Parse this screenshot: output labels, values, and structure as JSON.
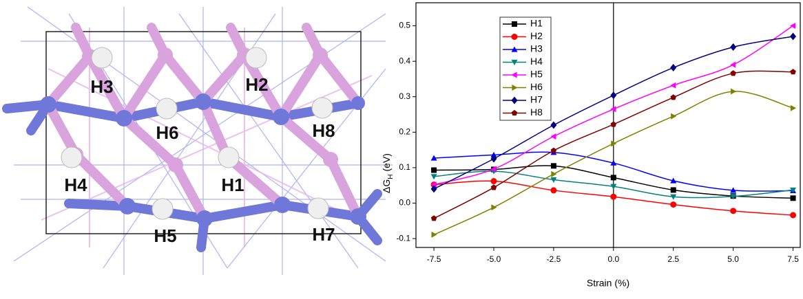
{
  "structure": {
    "labels": [
      "H3",
      "H2",
      "H6",
      "H8",
      "H4",
      "H1",
      "H5",
      "H7"
    ]
  },
  "chart_data": {
    "type": "line",
    "x": [
      -7.5,
      -5,
      -2.5,
      0,
      2.5,
      5,
      7.5
    ],
    "xlim": [
      -8.25,
      7.8
    ],
    "xticks": [
      -7.5,
      {
        "value": -5,
        "label": "-5.0"
      },
      -2.5,
      {
        "value": 0,
        "label": "0.0"
      },
      2.5,
      {
        "value": 5,
        "label": "5.0"
      },
      7.5
    ],
    "ylim": [
      -0.125,
      0.565
    ],
    "yticks": [
      -0.1,
      {
        "value": 0,
        "label": "0.0"
      },
      0.1,
      0.2,
      0.3,
      0.4,
      0.5
    ],
    "xlabel": "Strain (%)",
    "ylabel_parts": [
      "ΔG",
      "H",
      "(eV)"
    ],
    "reference_line_x": 0,
    "legend": "top-left",
    "series": [
      {
        "name": "H1",
        "color": "#000000",
        "marker": "square",
        "values": [
          0.093,
          0.095,
          0.105,
          0.072,
          0.037,
          0.02,
          0.014
        ]
      },
      {
        "name": "H2",
        "color": "#ff0000",
        "marker": "circle",
        "values": [
          0.052,
          0.062,
          0.036,
          0.018,
          -0.004,
          -0.022,
          -0.034
        ]
      },
      {
        "name": "H3",
        "color": "#0000ff",
        "marker": "triangle-up",
        "values": [
          0.127,
          0.136,
          0.143,
          0.113,
          0.063,
          0.036,
          0.035
        ]
      },
      {
        "name": "H4",
        "color": "#008080",
        "marker": "triangle-down",
        "values": [
          0.075,
          0.09,
          0.066,
          0.047,
          0.018,
          0.019,
          0.037
        ]
      },
      {
        "name": "H5",
        "color": "#ff00ff",
        "marker": "triangle-left",
        "values": [
          0.052,
          0.096,
          0.188,
          0.265,
          0.332,
          0.39,
          0.5
        ]
      },
      {
        "name": "H6",
        "color": "#808000",
        "marker": "triangle-right",
        "values": [
          -0.089,
          -0.012,
          0.082,
          0.168,
          0.245,
          0.315,
          0.268
        ]
      },
      {
        "name": "H7",
        "color": "#000080",
        "marker": "diamond",
        "values": [
          0.04,
          0.125,
          0.22,
          0.304,
          0.382,
          0.44,
          0.47
        ]
      },
      {
        "name": "H8",
        "color": "#800000",
        "marker": "pentagon",
        "values": [
          -0.043,
          0.044,
          0.148,
          0.222,
          0.298,
          0.366,
          0.37
        ]
      }
    ]
  }
}
